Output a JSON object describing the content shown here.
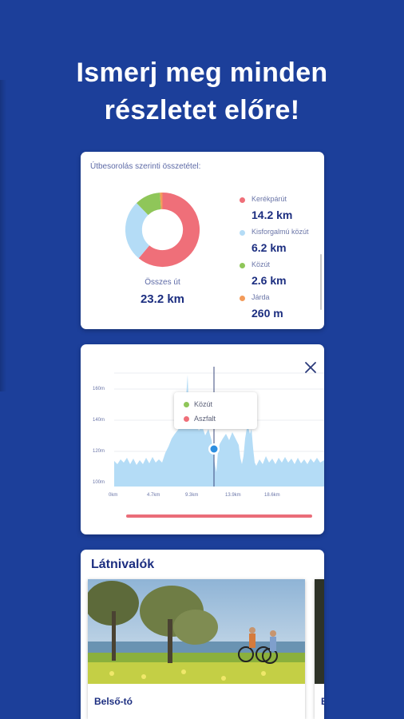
{
  "headline": {
    "line1": "Ismerj meg minden",
    "line2": "részletet előre!"
  },
  "composition_card": {
    "title": "Útbesorolás szerinti összetétel:",
    "total_label": "Összes út",
    "total_value": "23.2 km",
    "items": [
      {
        "name": "Kerékpárút",
        "value": "14.2 km",
        "km": 14.2,
        "color": "#ef6f79"
      },
      {
        "name": "Kisforgalmú közút",
        "value": "6.2 km",
        "km": 6.2,
        "color": "#b4dcf6"
      },
      {
        "name": "Közút",
        "value": "2.6 km",
        "km": 2.6,
        "color": "#8fc659"
      },
      {
        "name": "Járda",
        "value": "260 m",
        "km": 0.26,
        "color": "#f39b5a"
      }
    ]
  },
  "elevation_card": {
    "close_icon": "close-icon",
    "y_ticks": [
      "160m",
      "140m",
      "120m",
      "100m"
    ],
    "x_ticks": [
      "0km",
      "4.7km",
      "9.3km",
      "13.9km",
      "18.6km"
    ],
    "tooltip": {
      "items": [
        {
          "name": "Közút",
          "color": "#8fc659"
        },
        {
          "name": "Aszfalt",
          "color": "#ef6f79"
        }
      ]
    },
    "fill_color": "#b4dcf6",
    "marker_color": "#2e8fe0",
    "bar_color": "#ea6d79"
  },
  "sights_card": {
    "title": "Látnivalók",
    "items": [
      {
        "name": "Belső-tó"
      },
      {
        "name": "B"
      }
    ]
  },
  "colors": {
    "background": "#1c3f9a",
    "primary_text": "#1c2e80"
  }
}
